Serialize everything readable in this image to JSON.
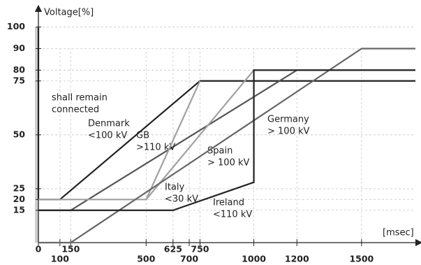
{
  "chart_data": {
    "type": "line",
    "y_label": "Voltage[%]",
    "x_label": "[msec]",
    "xlim": [
      0,
      1750
    ],
    "ylim": [
      0,
      108
    ],
    "xticks": [
      0,
      100,
      150,
      500,
      625,
      700,
      750,
      1000,
      1200,
      1500
    ],
    "yticks": [
      15,
      20,
      25,
      50,
      75,
      80,
      90,
      100
    ],
    "annotations": [
      [
        "shall remain",
        "connected"
      ]
    ],
    "series": [
      {
        "label": [
          "Denmark",
          "<100 kV"
        ],
        "color": "#222222",
        "x": [
          0,
          0,
          100,
          750,
          1750
        ],
        "values": [
          100,
          20,
          20,
          75,
          75
        ]
      },
      {
        "label": [
          "GB",
          ">110 kV"
        ],
        "color": "#555555",
        "x": [
          0,
          150,
          1200,
          1750
        ],
        "values": [
          15,
          15,
          80,
          80
        ]
      },
      {
        "label": [
          "Italy",
          "<30 kV"
        ],
        "color": "#a0a0a0",
        "x": [
          0,
          500,
          750
        ],
        "values": [
          20,
          20,
          75
        ]
      },
      {
        "label": [
          "Spain",
          "> 100 kV"
        ],
        "color": "#a0a0a0",
        "x": [
          500,
          1000,
          1750
        ],
        "values": [
          20,
          80,
          80
        ]
      },
      {
        "label": [
          "Germany",
          "> 100 kV"
        ],
        "color": "#666666",
        "x": [
          0,
          150,
          1500,
          1750
        ],
        "values": [
          0,
          0,
          90,
          90
        ]
      },
      {
        "label": [
          "Ireland",
          "<110 kV"
        ],
        "color": "#222222",
        "x": [
          0,
          625,
          1000,
          1000,
          1750
        ],
        "values": [
          15,
          15,
          28,
          80,
          80
        ]
      }
    ]
  }
}
